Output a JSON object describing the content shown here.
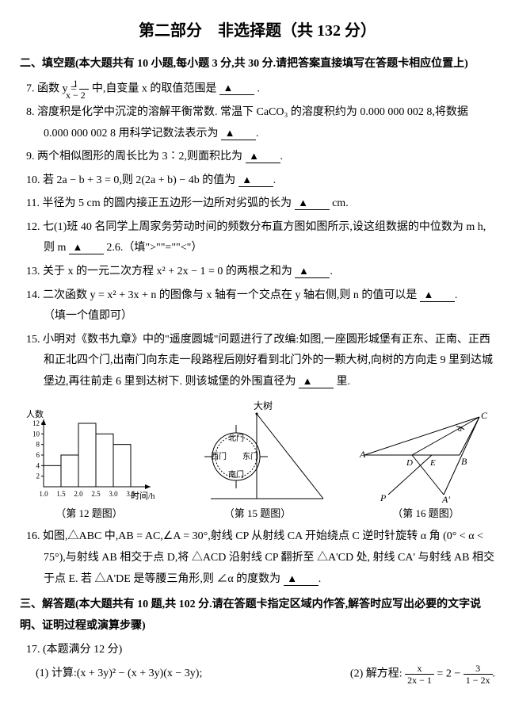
{
  "title_main": "第二部分　非选择题（共 132 分）",
  "section2": "二、填空题(本大题共有 10 小题,每小题 3 分,共 30 分.请把答案直接填写在答题卡相应位置上)",
  "q7a": "7. 函数 y = ",
  "q7b": " 中,自变量 x 的取值范围是 ",
  "q7p": ".",
  "frac7n": "1",
  "frac7d": "x − 2",
  "q8": "8. 溶度积是化学中沉淀的溶解平衡常数. 常温下 CaCO₃ 的溶度积约为 0.000 000 002 8,将数据 0.000 000 002 8 用科学记数法表示为 ",
  "q9": "9. 两个相似图形的周长比为 3∶2,则面积比为 ",
  "q10": "10. 若 2a − b + 3 = 0,则 2(2a + b) − 4b 的值为 ",
  "q11": "11. 半径为 5 cm 的圆内接正五边形一边所对劣弧的长为 ",
  "q11u": "cm.",
  "q12a": "12. 七(1)班 40 名同学上周家务劳动时间的频数分布直方图如图所示,设这组数据的中位数为 m h,则 m ",
  "q12b": " 2.6.（填\">\"\"=\"\"<\"）",
  "q13": "13. 关于 x 的一元二次方程 x² + 2x − 1 = 0 的两根之和为 ",
  "q14a": "14. 二次函数 y = x² + 3x + n 的图像与 x 轴有一个交点在 y 轴右侧,则 n 的值可以是 ",
  "q14b": "（填一个值即可）",
  "q15a": "15. 小明对《数书九章》中的\"遥度圆城\"问题进行了改编:如图,一座圆形城堡有正东、正南、正西和正北四个门,出南门向东走一段路程后刚好看到北门外的一颗大树,向树的方向走 9 里到达城堡边,再往前走 6 里到达树下. 则该城堡的外围直径为 ",
  "q15u": " 里.",
  "q16a": "16. 如图,△ABC 中,AB = AC,∠A = 30°,射线 CP 从射线 CA 开始绕点 C 逆时针旋转 α 角 (0° < α < 75°),与射线 AB 相交于点 D,将 △ACD 沿射线 CP 翻折至 △A'CD 处, 射线 CA' 与射线 AB 相交于点 E. 若 △A'DE 是等腰三角形,则 ∠α 的度数为 ",
  "section3": "三、解答题(本大题共有 10 题,共 102 分.请在答题卡指定区域内作答,解答时应写出必要的文字说明、证明过程或演算步骤)",
  "q17": "17. (本题满分 12 分)",
  "q17_1a": "(1) 计算:(x + 3y)² − (x + 3y)(x − 3y);",
  "q17_2a": "(2) 解方程:",
  "f17an": "x",
  "f17ad": "2x − 1",
  "q17_2b": "= 2 −",
  "f17bn": "3",
  "f17bd": "1 − 2x",
  "cap12": "（第 12 题图）",
  "cap15": "（第 15 题图）",
  "cap16": "（第 16 题图）",
  "tree": "大树",
  "n_gate": "北门",
  "s_gate": "南门",
  "e_gate": "东门",
  "w_gate": "西门",
  "yaxis": "人数",
  "xaxis": "时间/h",
  "histogram": {
    "bins": [
      "1.0",
      "1.5",
      "2.0",
      "2.5",
      "3.0",
      "3.5"
    ],
    "values": [
      4,
      6,
      12,
      10,
      8
    ],
    "yticks": [
      2,
      4,
      6,
      8,
      10,
      12
    ],
    "bar_fill": "#ffffff",
    "bar_stroke": "#000000",
    "axis_color": "#000000"
  }
}
